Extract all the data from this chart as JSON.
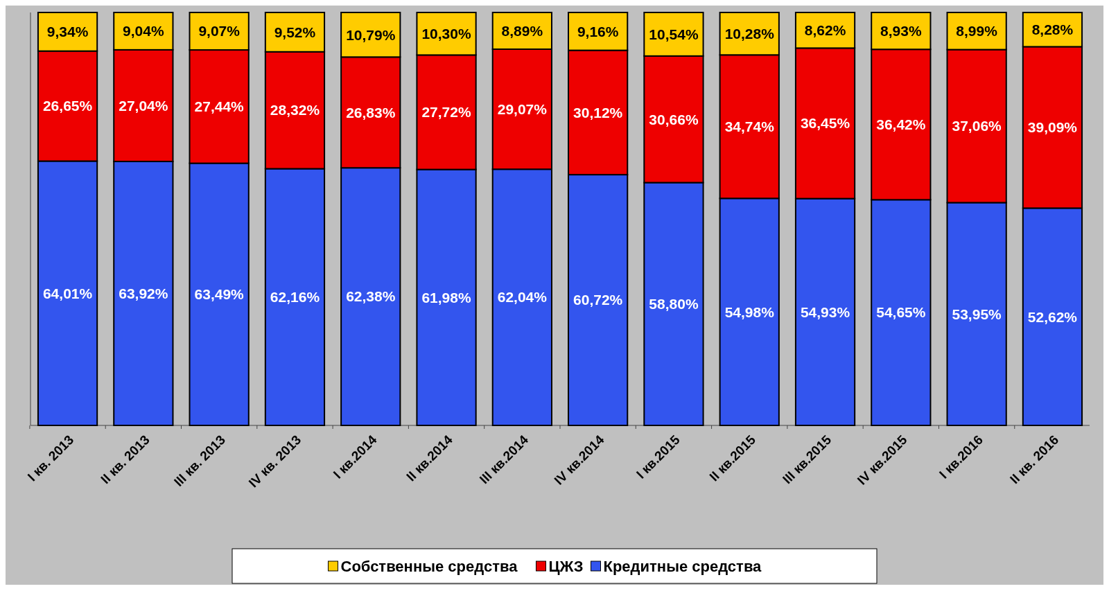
{
  "chart_data": {
    "type": "bar",
    "stacked": true,
    "tick_labels": "x",
    "legend": "bottom",
    "categories": [
      "I кв. 2013",
      "II кв. 2013",
      "III кв. 2013",
      "IV кв. 2013",
      "I кв.2014",
      "II кв.2014",
      "III кв.2014",
      "IV кв.2014",
      "I кв.2015",
      "II кв.2015",
      "III кв.2015",
      "IV кв.2015",
      "I кв.2016",
      "II кв. 2016"
    ],
    "series": [
      {
        "name": "Кредитные средства",
        "color": "#3355ee",
        "values": [
          64.01,
          63.92,
          63.49,
          62.16,
          62.38,
          61.98,
          62.04,
          60.72,
          58.8,
          54.98,
          54.93,
          54.65,
          53.95,
          52.62
        ],
        "value_labels": [
          "64,01%",
          "63,92%",
          "63,49%",
          "62,16%",
          "62,38%",
          "61,98%",
          "62,04%",
          "60,72%",
          "58,80%",
          "54,98%",
          "54,93%",
          "54,65%",
          "53,95%",
          "52,62%"
        ]
      },
      {
        "name": "ЦЖЗ",
        "color": "#ee0000",
        "values": [
          26.65,
          27.04,
          27.44,
          28.32,
          26.83,
          27.72,
          29.07,
          30.12,
          30.66,
          34.74,
          36.45,
          36.42,
          37.06,
          39.09
        ],
        "value_labels": [
          "26,65%",
          "27,04%",
          "27,44%",
          "28,32%",
          "26,83%",
          "27,72%",
          "29,07%",
          "30,12%",
          "30,66%",
          "34,74%",
          "36,45%",
          "36,42%",
          "37,06%",
          "39,09%"
        ]
      },
      {
        "name": "Собственные средства",
        "color": "#ffcc00",
        "values": [
          9.34,
          9.04,
          9.07,
          9.52,
          10.79,
          10.3,
          8.89,
          9.16,
          10.54,
          10.28,
          8.62,
          8.93,
          8.99,
          8.28
        ],
        "value_labels": [
          "9,34%",
          "9,04%",
          "9,07%",
          "9,52%",
          "10,79%",
          "10,30%",
          "8,89%",
          "9,16%",
          "10,54%",
          "10,28%",
          "8,62%",
          "8,93%",
          "8,99%",
          "8,28%"
        ]
      }
    ]
  }
}
